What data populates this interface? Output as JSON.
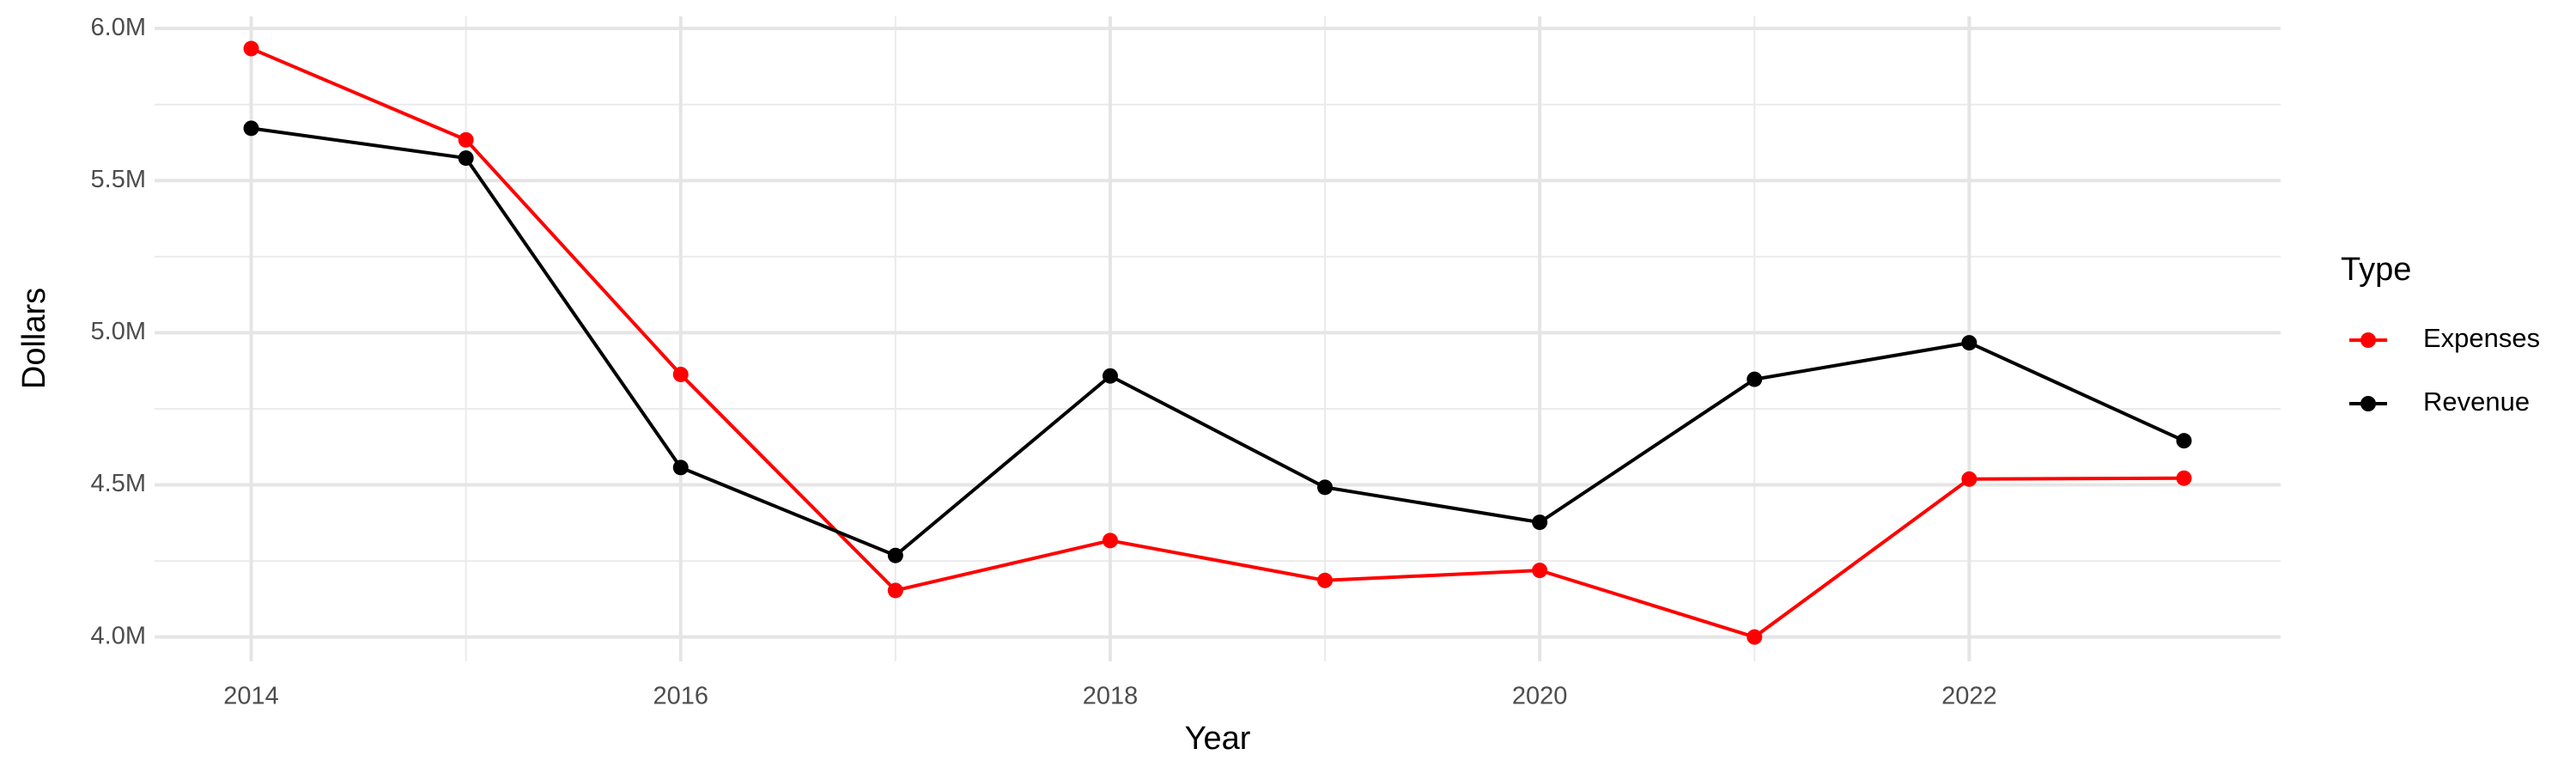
{
  "chart_data": {
    "type": "line",
    "x_label": "Year",
    "y_label": "Dollars",
    "x": [
      2014,
      2015,
      2016,
      2017,
      2018,
      2019,
      2020,
      2021,
      2022,
      2023
    ],
    "series": [
      {
        "name": "Expenses",
        "color": "#ff0000",
        "values": [
          5934000,
          5634000,
          4863000,
          4153000,
          4317000,
          4186000,
          4219000,
          4000000,
          4519000,
          4522000
        ]
      },
      {
        "name": "Revenue",
        "color": "#000000",
        "values": [
          5672000,
          5574000,
          4557000,
          4268000,
          4858000,
          4492000,
          4377000,
          4847000,
          4967000,
          4645000
        ]
      }
    ],
    "xlim": [
      2013.55,
      2023.45
    ],
    "xticks": [
      2014,
      2016,
      2018,
      2020,
      2022
    ],
    "ylim": [
      3920000,
      6040000
    ],
    "yticks": [
      {
        "value": 4000000,
        "label": "4.0M"
      },
      {
        "value": 4500000,
        "label": "4.5M"
      },
      {
        "value": 5000000,
        "label": "5.0M"
      },
      {
        "value": 5500000,
        "label": "5.5M"
      },
      {
        "value": 6000000,
        "label": "6.0M"
      }
    ],
    "grid": true,
    "minor_grid": true,
    "legend_title": "Type",
    "legend_position": "right"
  }
}
